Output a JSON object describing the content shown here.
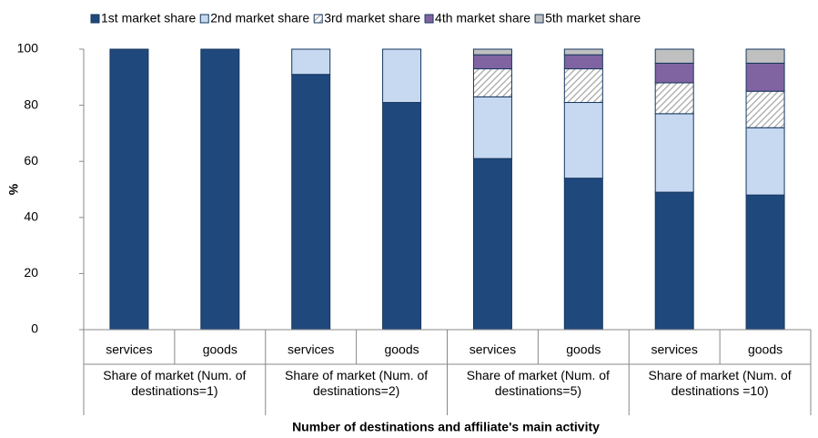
{
  "chart_data": {
    "type": "stacked_bar",
    "y_label": "%",
    "x_label": "Number of destinations and affiliate's main activity",
    "categories": [
      "services",
      "goods",
      "services",
      "goods",
      "services",
      "goods",
      "services",
      "goods"
    ],
    "groups": [
      "Share of market (Num. of destinations=1)",
      "Share of market (Num. of destinations=2)",
      "Share of market (Num. of destinations=5)",
      "Share of market (Num. of destinations =10)"
    ],
    "series": [
      {
        "name": "1st market share",
        "color": "#1f497d",
        "values": [
          100,
          100,
          91,
          81,
          61,
          54,
          49,
          48
        ]
      },
      {
        "name": "2nd market share",
        "color": "#c6d9f1",
        "values": [
          0,
          0,
          9,
          19,
          22,
          27,
          28,
          24
        ]
      },
      {
        "name": "3rd market share",
        "color": "#a6a6a6",
        "pattern": "hatch",
        "values": [
          0,
          0,
          0,
          0,
          10,
          12,
          11,
          13
        ]
      },
      {
        "name": "4th market share",
        "color": "#8064a2",
        "values": [
          0,
          0,
          0,
          0,
          5,
          5,
          7,
          10
        ]
      },
      {
        "name": "5th market share",
        "color": "#c0c0c0",
        "values": [
          0,
          0,
          0,
          0,
          2,
          2,
          5,
          5
        ]
      }
    ],
    "ylim": [
      0,
      100
    ],
    "yticks": [
      0,
      20,
      40,
      60,
      80,
      100
    ],
    "legend": "top"
  }
}
